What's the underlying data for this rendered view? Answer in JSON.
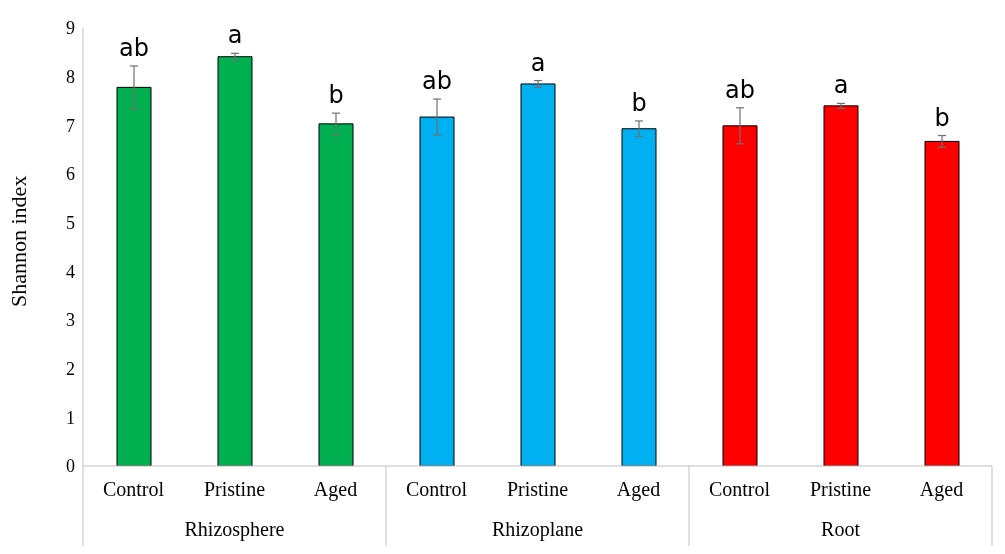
{
  "chart_data": {
    "type": "bar",
    "ylabel": "Shannon index",
    "categories": [
      "Control",
      "Pristine",
      "Aged",
      "Control",
      "Pristine",
      "Aged",
      "Control",
      "Pristine",
      "Aged"
    ],
    "values": [
      7.78,
      8.41,
      7.03,
      7.17,
      7.85,
      6.93,
      6.99,
      7.4,
      6.67
    ],
    "errors": [
      0.44,
      0.07,
      0.22,
      0.37,
      0.07,
      0.16,
      0.37,
      0.05,
      0.12
    ],
    "colors": [
      "#00b050",
      "#00b050",
      "#00b050",
      "#00b0f0",
      "#00b0f0",
      "#00b0f0",
      "#ff0000",
      "#ff0000",
      "#ff0000"
    ],
    "value_labels": [
      "ab",
      "a",
      "b",
      "ab",
      "a",
      "b",
      "ab",
      "a",
      "b"
    ],
    "annotations": [
      "Rhizosphere",
      "Rhizoplane",
      "Root"
    ],
    "ylim": [
      0,
      9
    ],
    "yticks": [
      0,
      1,
      2,
      3,
      4,
      5,
      6,
      7,
      8,
      9
    ],
    "grid": false
  }
}
